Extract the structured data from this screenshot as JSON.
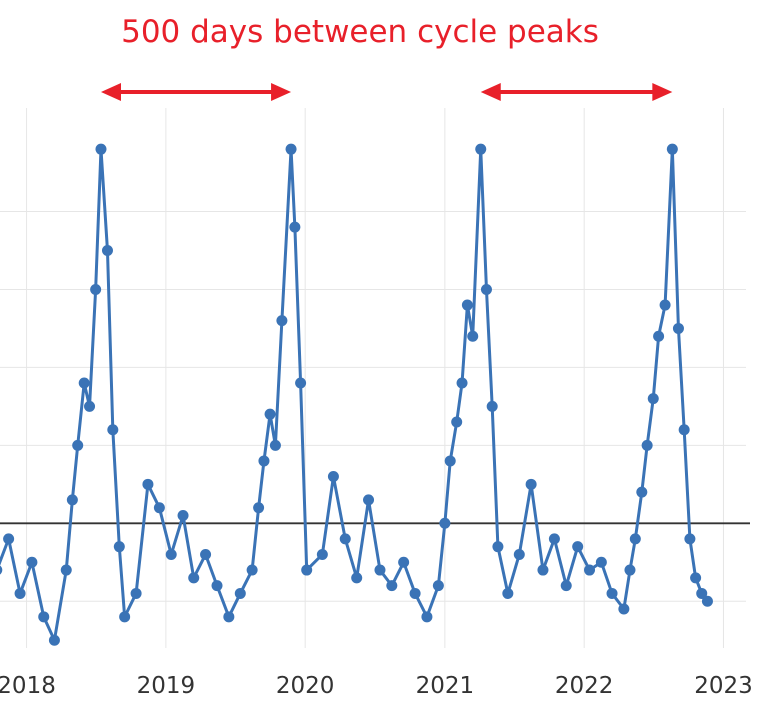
{
  "chart_data": {
    "type": "line",
    "annotation": "500 days between cycle peaks",
    "xlabel": "",
    "ylabel": "",
    "x_ticks": [
      "2018",
      "2019",
      "2020",
      "2021",
      "2022",
      "2023"
    ],
    "xlim": [
      "2017-09-01",
      "2023-03-01"
    ],
    "reference_line": 0,
    "grid": true,
    "colors": {
      "series": "#3a73b6",
      "annotation": "#e8202a",
      "reference": "#333333",
      "grid": "#e6e6e6"
    },
    "peaks": [
      "2018-07-15",
      "2019-11-25",
      "2021-04-05",
      "2022-08-20"
    ],
    "x": [
      "2017-09-15",
      "2017-10-15",
      "2017-11-15",
      "2017-12-15",
      "2018-01-15",
      "2018-02-15",
      "2018-03-15",
      "2018-04-15",
      "2018-05-01",
      "2018-05-15",
      "2018-06-01",
      "2018-06-15",
      "2018-07-01",
      "2018-07-15",
      "2018-08-01",
      "2018-08-15",
      "2018-09-01",
      "2018-09-15",
      "2018-10-15",
      "2018-11-15",
      "2018-12-15",
      "2019-01-15",
      "2019-02-15",
      "2019-03-15",
      "2019-04-15",
      "2019-05-15",
      "2019-06-15",
      "2019-07-15",
      "2019-08-15",
      "2019-09-01",
      "2019-09-15",
      "2019-10-01",
      "2019-10-15",
      "2019-11-01",
      "2019-11-25",
      "2019-12-05",
      "2019-12-20",
      "2020-01-05",
      "2020-02-15",
      "2020-03-15",
      "2020-04-15",
      "2020-05-15",
      "2020-06-15",
      "2020-07-15",
      "2020-08-15",
      "2020-09-15",
      "2020-10-15",
      "2020-11-15",
      "2020-12-15",
      "2021-01-01",
      "2021-01-15",
      "2021-02-01",
      "2021-02-15",
      "2021-03-01",
      "2021-03-15",
      "2021-04-05",
      "2021-04-20",
      "2021-05-05",
      "2021-05-20",
      "2021-06-15",
      "2021-07-15",
      "2021-08-15",
      "2021-09-15",
      "2021-10-15",
      "2021-11-15",
      "2021-12-15",
      "2022-01-15",
      "2022-02-15",
      "2022-03-15",
      "2022-04-15",
      "2022-05-01",
      "2022-05-15",
      "2022-06-01",
      "2022-06-15",
      "2022-07-01",
      "2022-07-15",
      "2022-08-01",
      "2022-08-20",
      "2022-09-05",
      "2022-09-20",
      "2022-10-05",
      "2022-10-20",
      "2022-11-05",
      "2022-11-20"
    ],
    "y": [
      -0.4,
      -0.6,
      -0.2,
      -0.9,
      -0.5,
      -1.2,
      -1.5,
      -0.6,
      0.3,
      1.0,
      1.8,
      1.5,
      3.0,
      4.8,
      3.5,
      1.2,
      -0.3,
      -1.2,
      -0.9,
      0.5,
      0.2,
      -0.4,
      0.1,
      -0.7,
      -0.4,
      -0.8,
      -1.2,
      -0.9,
      -0.6,
      0.2,
      0.8,
      1.4,
      1.0,
      2.6,
      4.8,
      3.8,
      1.8,
      -0.6,
      -0.4,
      0.6,
      -0.2,
      -0.7,
      0.3,
      -0.6,
      -0.8,
      -0.5,
      -0.9,
      -1.2,
      -0.8,
      0.0,
      0.8,
      1.3,
      1.8,
      2.8,
      2.4,
      4.8,
      3.0,
      1.5,
      -0.3,
      -0.9,
      -0.4,
      0.5,
      -0.6,
      -0.2,
      -0.8,
      -0.3,
      -0.6,
      -0.5,
      -0.9,
      -1.1,
      -0.6,
      -0.2,
      0.4,
      1.0,
      1.6,
      2.4,
      2.8,
      4.8,
      2.5,
      1.2,
      -0.2,
      -0.7,
      -0.9,
      -1.0
    ]
  }
}
